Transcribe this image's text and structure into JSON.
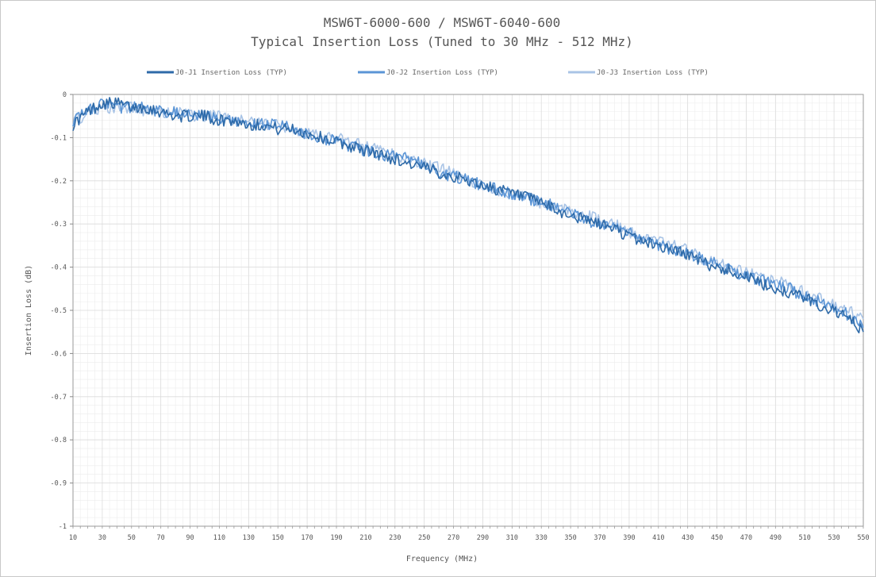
{
  "chart_data": {
    "type": "line",
    "title": "MSW6T-6000-600 / MSW6T-6040-600",
    "subtitle": "Typical Insertion Loss (Tuned to 30 MHz - 512 MHz)",
    "xlabel": "Frequency (MHz)",
    "ylabel": "Insertion Loss (dB)",
    "xlim": [
      10,
      550
    ],
    "ylim": [
      -1,
      0
    ],
    "x_ticks": [
      10,
      30,
      50,
      70,
      90,
      110,
      130,
      150,
      170,
      190,
      210,
      230,
      250,
      270,
      290,
      310,
      330,
      350,
      370,
      390,
      410,
      430,
      450,
      470,
      490,
      510,
      530,
      550
    ],
    "y_ticks": [
      0,
      -0.1,
      -0.2,
      -0.3,
      -0.4,
      -0.5,
      -0.6,
      -0.7,
      -0.8,
      -0.9,
      -1
    ],
    "y_tick_labels": [
      "0",
      "-0.1",
      "-0.2",
      "-0.3",
      "-0.4",
      "-0.5",
      "-0.6",
      "-0.7",
      "-0.8",
      "-0.9",
      "-1"
    ],
    "grid": true,
    "legend_position": "top",
    "series": [
      {
        "name": "J0-J1 Insertion Loss (TYP)",
        "color": "#2e6aa8",
        "x": [
          10,
          20,
          30,
          40,
          50,
          60,
          70,
          80,
          90,
          100,
          110,
          120,
          130,
          140,
          150,
          160,
          170,
          180,
          190,
          200,
          210,
          220,
          230,
          240,
          250,
          260,
          270,
          280,
          290,
          300,
          310,
          320,
          330,
          340,
          350,
          360,
          370,
          380,
          390,
          400,
          410,
          420,
          430,
          440,
          450,
          460,
          470,
          480,
          490,
          500,
          510,
          520,
          530,
          540,
          550
        ],
        "y": [
          -0.07,
          -0.04,
          -0.02,
          -0.02,
          -0.03,
          -0.03,
          -0.04,
          -0.05,
          -0.05,
          -0.05,
          -0.06,
          -0.06,
          -0.07,
          -0.07,
          -0.08,
          -0.08,
          -0.09,
          -0.1,
          -0.11,
          -0.12,
          -0.13,
          -0.14,
          -0.15,
          -0.16,
          -0.17,
          -0.18,
          -0.19,
          -0.2,
          -0.21,
          -0.22,
          -0.23,
          -0.24,
          -0.25,
          -0.27,
          -0.28,
          -0.29,
          -0.3,
          -0.31,
          -0.33,
          -0.34,
          -0.35,
          -0.36,
          -0.37,
          -0.39,
          -0.4,
          -0.41,
          -0.42,
          -0.44,
          -0.45,
          -0.46,
          -0.47,
          -0.49,
          -0.5,
          -0.52,
          -0.55
        ]
      },
      {
        "name": "J0-J2 Insertion Loss (TYP)",
        "color": "#5b95d6",
        "x": [
          10,
          20,
          30,
          40,
          50,
          60,
          70,
          80,
          90,
          100,
          110,
          120,
          130,
          140,
          150,
          160,
          170,
          180,
          190,
          200,
          210,
          220,
          230,
          240,
          250,
          260,
          270,
          280,
          290,
          300,
          310,
          320,
          330,
          340,
          350,
          360,
          370,
          380,
          390,
          400,
          410,
          420,
          430,
          440,
          450,
          460,
          470,
          480,
          490,
          500,
          510,
          520,
          530,
          540,
          550
        ],
        "y": [
          -0.06,
          -0.04,
          -0.02,
          -0.03,
          -0.03,
          -0.03,
          -0.04,
          -0.04,
          -0.05,
          -0.05,
          -0.06,
          -0.06,
          -0.07,
          -0.07,
          -0.07,
          -0.08,
          -0.09,
          -0.1,
          -0.11,
          -0.12,
          -0.13,
          -0.14,
          -0.14,
          -0.15,
          -0.16,
          -0.18,
          -0.19,
          -0.2,
          -0.21,
          -0.22,
          -0.23,
          -0.24,
          -0.25,
          -0.26,
          -0.27,
          -0.29,
          -0.3,
          -0.31,
          -0.32,
          -0.34,
          -0.35,
          -0.36,
          -0.37,
          -0.38,
          -0.39,
          -0.41,
          -0.42,
          -0.43,
          -0.44,
          -0.45,
          -0.47,
          -0.48,
          -0.5,
          -0.51,
          -0.54
        ]
      },
      {
        "name": "J0-J3 Insertion Loss (TYP)",
        "color": "#a9c4e6",
        "x": [
          10,
          20,
          30,
          40,
          50,
          60,
          70,
          80,
          90,
          100,
          110,
          120,
          130,
          140,
          150,
          160,
          170,
          180,
          190,
          200,
          210,
          220,
          230,
          240,
          250,
          260,
          270,
          280,
          290,
          300,
          310,
          320,
          330,
          340,
          350,
          360,
          370,
          380,
          390,
          400,
          410,
          420,
          430,
          440,
          450,
          460,
          470,
          480,
          490,
          500,
          510,
          520,
          530,
          540,
          550
        ],
        "y": [
          -0.06,
          -0.05,
          -0.03,
          -0.03,
          -0.03,
          -0.04,
          -0.04,
          -0.04,
          -0.05,
          -0.05,
          -0.05,
          -0.06,
          -0.06,
          -0.07,
          -0.07,
          -0.08,
          -0.09,
          -0.1,
          -0.1,
          -0.11,
          -0.12,
          -0.13,
          -0.14,
          -0.15,
          -0.16,
          -0.17,
          -0.18,
          -0.2,
          -0.21,
          -0.22,
          -0.23,
          -0.24,
          -0.25,
          -0.26,
          -0.27,
          -0.28,
          -0.29,
          -0.3,
          -0.32,
          -0.33,
          -0.34,
          -0.35,
          -0.36,
          -0.38,
          -0.39,
          -0.4,
          -0.41,
          -0.42,
          -0.43,
          -0.44,
          -0.46,
          -0.47,
          -0.49,
          -0.5,
          -0.52
        ]
      }
    ]
  }
}
